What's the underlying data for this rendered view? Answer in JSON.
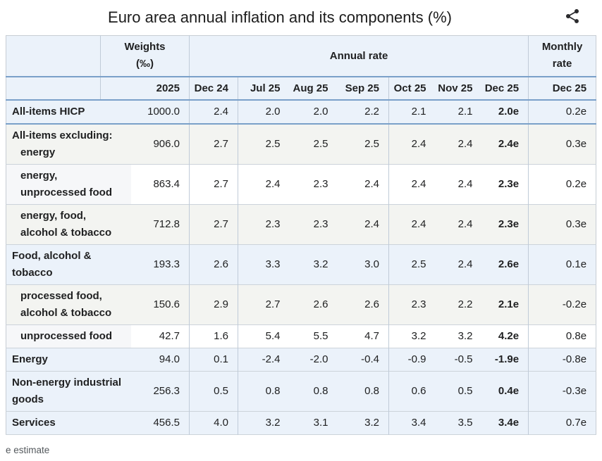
{
  "page": {
    "title": "Euro area annual inflation and its components (%)",
    "footnote": "e estimate"
  },
  "table": {
    "header": {
      "weights_line1": "Weights",
      "weights_line2": "(‰)",
      "annual_rate": "Annual rate",
      "monthly_line1": "Monthly",
      "monthly_line2": "rate",
      "weights_year": "2025",
      "months": [
        "Dec 24",
        "Jul 25",
        "Aug 25",
        "Sep 25",
        "Oct 25",
        "Nov 25",
        "Dec 25"
      ],
      "monthly_month": "Dec 25"
    },
    "rows": [
      {
        "label_lines": [
          {
            "text": "All-items HICP",
            "indent": false
          }
        ],
        "weight": "1000.0",
        "annual": [
          "2.4",
          "2.0",
          "2.0",
          "2.2",
          "2.1",
          "2.1",
          "2.0e"
        ],
        "monthly": "0.2e",
        "bg": "blue",
        "blue_bottom": true
      },
      {
        "label_lines": [
          {
            "text": "All-items excluding:",
            "indent": false
          },
          {
            "text": "energy",
            "indent": true
          }
        ],
        "weight": "906.0",
        "annual": [
          "2.7",
          "2.5",
          "2.5",
          "2.5",
          "2.4",
          "2.4",
          "2.4e"
        ],
        "monthly": "0.3e",
        "bg": "gray",
        "blue_bottom": false
      },
      {
        "label_lines": [
          {
            "text": "energy,",
            "indent": true
          },
          {
            "text": "unprocessed food",
            "indent": true
          }
        ],
        "weight": "863.4",
        "annual": [
          "2.7",
          "2.4",
          "2.3",
          "2.4",
          "2.4",
          "2.4",
          "2.3e"
        ],
        "monthly": "0.2e",
        "bg": "white",
        "blue_bottom": false
      },
      {
        "label_lines": [
          {
            "text": "energy, food,",
            "indent": true
          },
          {
            "text": "alcohol & tobacco",
            "indent": true
          }
        ],
        "weight": "712.8",
        "annual": [
          "2.7",
          "2.3",
          "2.3",
          "2.4",
          "2.4",
          "2.4",
          "2.3e"
        ],
        "monthly": "0.3e",
        "bg": "gray",
        "blue_bottom": false
      },
      {
        "label_lines": [
          {
            "text": "Food, alcohol &",
            "indent": false
          },
          {
            "text": "tobacco",
            "indent": false
          }
        ],
        "weight": "193.3",
        "annual": [
          "2.6",
          "3.3",
          "3.2",
          "3.0",
          "2.5",
          "2.4",
          "2.6e"
        ],
        "monthly": "0.1e",
        "bg": "blue",
        "blue_bottom": false
      },
      {
        "label_lines": [
          {
            "text": "processed food,",
            "indent": true
          },
          {
            "text": "alcohol & tobacco",
            "indent": true
          }
        ],
        "weight": "150.6",
        "annual": [
          "2.9",
          "2.7",
          "2.6",
          "2.6",
          "2.3",
          "2.2",
          "2.1e"
        ],
        "monthly": "-0.2e",
        "bg": "gray",
        "blue_bottom": false
      },
      {
        "label_lines": [
          {
            "text": "unprocessed food",
            "indent": true
          }
        ],
        "weight": "42.7",
        "annual": [
          "1.6",
          "5.4",
          "5.5",
          "4.7",
          "3.2",
          "3.2",
          "4.2e"
        ],
        "monthly": "0.8e",
        "bg": "white",
        "blue_bottom": false
      },
      {
        "label_lines": [
          {
            "text": "Energy",
            "indent": false
          }
        ],
        "weight": "94.0",
        "annual": [
          "0.1",
          "-2.4",
          "-2.0",
          "-0.4",
          "-0.9",
          "-0.5",
          "-1.9e"
        ],
        "monthly": "-0.8e",
        "bg": "blue",
        "blue_bottom": false
      },
      {
        "label_lines": [
          {
            "text": "Non-energy industrial",
            "indent": false
          },
          {
            "text": "goods",
            "indent": false
          }
        ],
        "weight": "256.3",
        "annual": [
          "0.5",
          "0.8",
          "0.8",
          "0.8",
          "0.6",
          "0.5",
          "0.4e"
        ],
        "monthly": "-0.3e",
        "bg": "blue",
        "blue_bottom": false
      },
      {
        "label_lines": [
          {
            "text": "Services",
            "indent": false
          }
        ],
        "weight": "456.5",
        "annual": [
          "4.0",
          "3.2",
          "3.1",
          "3.2",
          "3.4",
          "3.5",
          "3.4e"
        ],
        "monthly": "0.7e",
        "bg": "blue",
        "blue_bottom": false
      }
    ]
  },
  "icons": {
    "share": "share-icon"
  },
  "colors": {
    "accent_line": "#7aa0c9",
    "row_blue": "#ebf2fa",
    "row_gray": "#f3f4f1",
    "label_gray": "#f6f7f9",
    "grid_line": "#ccd3da",
    "grid_vline": "#c0cbd8",
    "outer_line": "#c7cdd4",
    "text": "#202122",
    "footnote": "#54595d"
  }
}
